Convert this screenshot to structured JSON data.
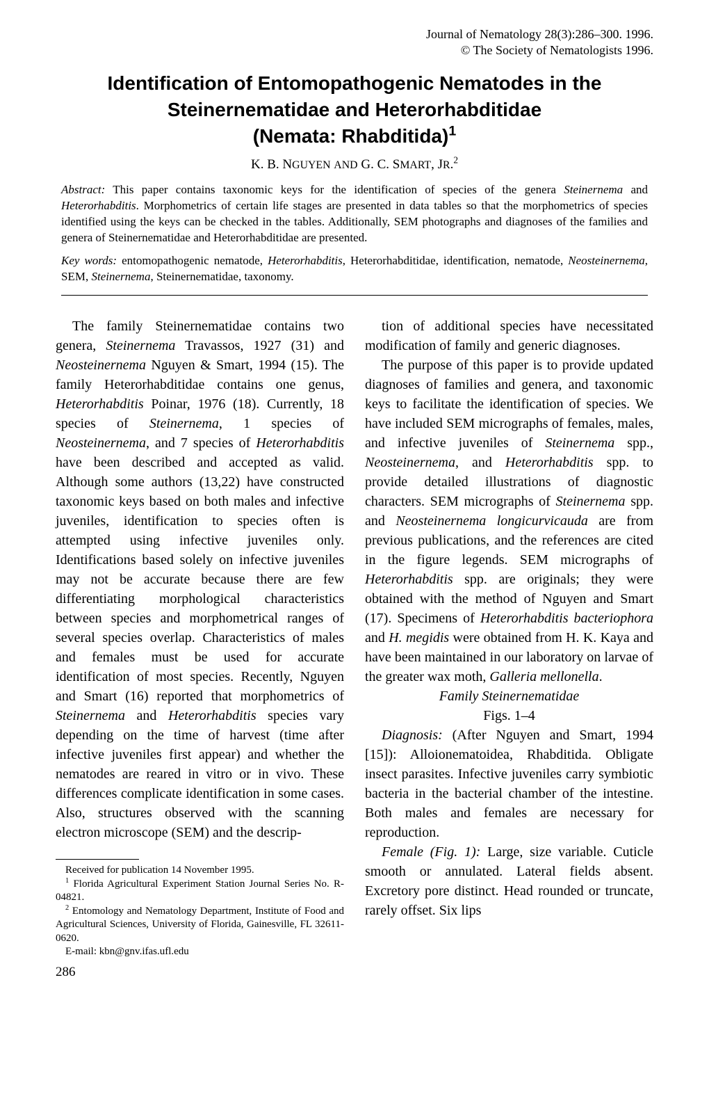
{
  "meta": {
    "journal_line": "Journal of Nematology 28(3):286–300. 1996.",
    "copyright_line": "© The Society of Nematologists 1996."
  },
  "title": {
    "line1": "Identification of Entomopathogenic Nematodes in the",
    "line2": "Steinernematidae and Heterorhabditidae",
    "line3": "(Nemata: Rhabditida)",
    "sup": "1"
  },
  "authors": {
    "text_html": "K. B. N<small>GUYEN</small> <small>AND</small> G. C. S<small>MART</small>, J<small>R</small>.<sup>2</sup>"
  },
  "abstract": {
    "label": "Abstract:",
    "text_html": "This paper contains taxonomic keys for the identification of species of the genera <em>Steinernema</em> and <em>Heterorhabditis</em>. Morphometrics of certain life stages are presented in data tables so that the morphometrics of species identified using the keys can be checked in the tables. Additionally, SEM photographs and diagnoses of the families and genera of Steinernematidae and Heterorhabditidae are presented."
  },
  "keywords": {
    "label": "Key words:",
    "text_html": "entomopathogenic nematode, <em>Heterorhabditis</em>, Heterorhabditidae, identification, nematode, <em>Neosteinernema</em>, SEM, <em>Steinernema</em>, Steinernematidae, taxonomy."
  },
  "body": {
    "left": {
      "p1_html": "The family Steinernematidae contains two genera, <em>Steinernema</em> Travassos, 1927 (31) and <em>Neosteinernema</em> Nguyen &amp; Smart, 1994 (15). The family Heterorhabditidae contains one genus, <em>Heterorhabditis</em> Poinar, 1976 (18). Currently, 18 species of <em>Steinernema</em>, 1 species of <em>Neosteinernema</em>, and 7 species of <em>Heterorhabditis</em> have been described and accepted as valid. Although some authors (13,22) have constructed taxonomic keys based on both males and infective juveniles, identification to species often is attempted using infective juveniles only. Identifications based solely on infective juveniles may not be accurate because there are few differentiating morphological characteristics between species and morphometrical ranges of several species overlap. Characteristics of males and females must be used for accurate identification of most species. Recently, Nguyen and Smart (16) reported that morphometrics of <em>Steinernema</em> and <em>Heterorhabditis</em> species vary depending on the time of harvest (time after infective juveniles first appear) and whether the nematodes are reared in vitro or in vivo. These differences complicate identification in some cases. Also, structures observed with the scanning electron microscope (SEM) and the descrip-"
    },
    "right": {
      "p1_html": "tion of additional species have necessitated modification of family and generic diagnoses.",
      "p2_html": "The purpose of this paper is to provide updated diagnoses of families and genera, and taxonomic keys to facilitate the identification of species. We have included SEM micrographs of females, males, and infective juveniles of <em>Steinernema</em> spp., <em>Neosteinernema</em>, and <em>Heterorhabditis</em> spp. to provide detailed illustrations of diagnostic characters. SEM micrographs of <em>Steinernema</em> spp. and <em>Neosteinernema longicurvicauda</em> are from previous publications, and the references are cited in the figure legends. SEM micrographs of <em>Heterorhabditis</em> spp. are originals; they were obtained with the method of Nguyen and Smart (17). Specimens of <em>Heterorhabditis bacteriophora</em> and <em>H. megidis</em> were obtained from H. K. Kaya and have been maintained in our laboratory on larvae of the greater wax moth, <em>Galleria mellonella</em>.",
      "section_heading": "Family Steinernematidae",
      "figs": "Figs. 1–4",
      "p3_html": "<em>Diagnosis:</em> (After Nguyen and Smart, 1994 [15]): Alloionematoidea, Rhabditida. Obligate insect parasites. Infective juveniles carry symbiotic bacteria in the bacterial chamber of the intestine. Both males and females are necessary for reproduction.",
      "p4_html": "<em>Female (Fig. 1):</em> Large, size variable. Cuticle smooth or annulated. Lateral fields absent. Excretory pore distinct. Head rounded or truncate, rarely offset. Six lips"
    }
  },
  "footnotes": {
    "f1": "Received for publication 14 November 1995.",
    "f2_html": "<sup>1</sup> Florida Agricultural Experiment Station Journal Series No. R-04821.",
    "f3_html": "<sup>2</sup> Entomology and Nematology Department, Institute of Food and Agricultural Sciences, University of Florida, Gainesville, FL 32611-0620.",
    "f4": "E-mail: kbn@gnv.ifas.ufl.edu"
  },
  "page_number": "286"
}
